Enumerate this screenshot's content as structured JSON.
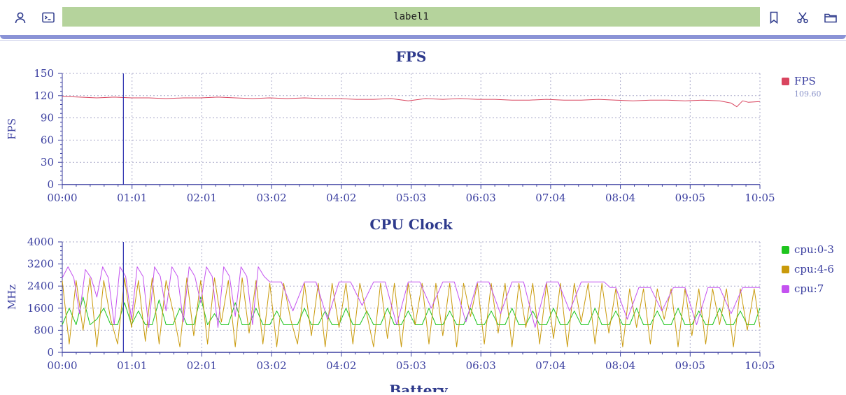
{
  "toolbar": {
    "label": "label1",
    "icons": [
      "user-icon",
      "terminal-icon",
      "bookmark-icon",
      "scissors-icon",
      "folder-icon"
    ]
  },
  "colors": {
    "axis": "#3b3fa0",
    "title": "#2e3a8c",
    "grid": "#a9a9c9",
    "cursor": "#2b2fb0",
    "fps": "#d9455f",
    "cpu03": "#1ec51e",
    "cpu46": "#c99a0b",
    "cpu7": "#c452f0"
  },
  "chart_data": [
    {
      "type": "line",
      "title": "FPS",
      "ylabel": "FPS",
      "xlabel": "",
      "ylim": [
        0,
        150
      ],
      "yticks": [
        "0",
        "30",
        "60",
        "90",
        "120",
        "150"
      ],
      "xticks": [
        "00:00",
        "01:01",
        "02:01",
        "03:02",
        "04:02",
        "05:03",
        "06:03",
        "07:04",
        "08:04",
        "09:05",
        "10:05"
      ],
      "x_seconds_range": [
        0,
        605
      ],
      "cursor_time": "00:53",
      "grid": true,
      "legend_position": "right",
      "series": [
        {
          "name": "FPS",
          "value_label": "109.60",
          "x_seconds": [
            0,
            15,
            30,
            45,
            60,
            75,
            90,
            105,
            120,
            135,
            150,
            165,
            180,
            195,
            210,
            225,
            240,
            255,
            270,
            285,
            300,
            315,
            330,
            345,
            360,
            375,
            390,
            405,
            420,
            435,
            450,
            465,
            480,
            495,
            510,
            525,
            540,
            555,
            570,
            580,
            585,
            590,
            595,
            605
          ],
          "values": [
            119,
            118,
            117,
            118,
            117,
            117,
            116,
            117,
            117,
            118,
            117,
            116,
            117,
            116,
            117,
            116,
            116,
            115,
            115,
            116,
            113,
            116,
            115,
            116,
            115,
            115,
            114,
            114,
            115,
            114,
            114,
            115,
            114,
            113,
            114,
            114,
            113,
            114,
            113,
            110,
            105,
            113,
            111,
            112
          ]
        }
      ]
    },
    {
      "type": "line",
      "title": "CPU Clock",
      "ylabel": "MHz",
      "xlabel": "",
      "ylim": [
        0,
        4000
      ],
      "yticks": [
        "0",
        "800",
        "1600",
        "2400",
        "3200",
        "4000"
      ],
      "xticks": [
        "00:00",
        "01:01",
        "02:01",
        "03:02",
        "04:02",
        "05:03",
        "06:03",
        "07:04",
        "08:04",
        "09:05",
        "10:05"
      ],
      "x_seconds_range": [
        0,
        605
      ],
      "cursor_time": "00:53",
      "grid": true,
      "legend_position": "right",
      "series": [
        {
          "name": "cpu:0-3",
          "x_seconds": [
            0,
            6,
            12,
            18,
            24,
            30,
            36,
            42,
            48,
            54,
            60,
            66,
            72,
            78,
            84,
            90,
            96,
            102,
            108,
            114,
            120,
            126,
            132,
            138,
            144,
            150,
            156,
            162,
            168,
            174,
            180,
            186,
            192,
            198,
            204,
            210,
            216,
            222,
            228,
            234,
            240,
            246,
            252,
            258,
            264,
            270,
            276,
            282,
            288,
            294,
            300,
            306,
            312,
            318,
            324,
            330,
            336,
            342,
            348,
            354,
            360,
            366,
            372,
            378,
            384,
            390,
            396,
            402,
            408,
            414,
            420,
            426,
            432,
            438,
            444,
            450,
            456,
            462,
            468,
            474,
            480,
            486,
            492,
            498,
            504,
            510,
            516,
            522,
            528,
            534,
            540,
            546,
            552,
            558,
            564,
            570,
            576,
            582,
            588,
            594,
            600,
            605
          ],
          "values": [
            1000,
            1600,
            1000,
            2000,
            1000,
            1200,
            1600,
            1000,
            1000,
            1800,
            1000,
            1500,
            1000,
            1000,
            1900,
            1000,
            1000,
            1600,
            1000,
            1000,
            2000,
            1000,
            1400,
            1000,
            1000,
            1800,
            1000,
            1000,
            1600,
            1000,
            1000,
            1500,
            1000,
            1000,
            1000,
            1600,
            1000,
            1000,
            1500,
            1000,
            1000,
            1600,
            1000,
            1000,
            1500,
            1000,
            1000,
            1600,
            1000,
            1000,
            1500,
            1000,
            1000,
            1600,
            1000,
            1000,
            1500,
            1000,
            1000,
            1600,
            1000,
            1000,
            1500,
            1000,
            1000,
            1600,
            1000,
            1000,
            1500,
            1000,
            1000,
            1600,
            1000,
            1000,
            1500,
            1000,
            1000,
            1600,
            1000,
            1000,
            1500,
            1000,
            1000,
            1600,
            1000,
            1000,
            1500,
            1000,
            1000,
            1600,
            1000,
            1000,
            1500,
            1000,
            1000,
            1600,
            1000,
            1000,
            1500,
            1000,
            1000,
            1600
          ]
        },
        {
          "name": "cpu:4-6",
          "x_seconds": [
            0,
            6,
            12,
            18,
            24,
            30,
            36,
            42,
            48,
            54,
            60,
            66,
            72,
            78,
            84,
            90,
            96,
            102,
            108,
            114,
            120,
            126,
            132,
            138,
            144,
            150,
            156,
            162,
            168,
            174,
            180,
            186,
            192,
            198,
            204,
            210,
            216,
            222,
            228,
            234,
            240,
            246,
            252,
            258,
            264,
            270,
            276,
            282,
            288,
            294,
            300,
            306,
            312,
            318,
            324,
            330,
            336,
            342,
            348,
            354,
            360,
            366,
            372,
            378,
            384,
            390,
            396,
            402,
            408,
            414,
            420,
            426,
            432,
            438,
            444,
            450,
            456,
            462,
            468,
            474,
            480,
            486,
            492,
            498,
            504,
            510,
            516,
            522,
            528,
            534,
            540,
            546,
            552,
            558,
            564,
            570,
            576,
            582,
            588,
            594,
            600,
            605
          ],
          "values": [
            2600,
            300,
            2600,
            800,
            2700,
            200,
            2600,
            1200,
            300,
            2700,
            900,
            2600,
            400,
            2700,
            300,
            2600,
            1500,
            200,
            2700,
            600,
            2600,
            300,
            2700,
            1100,
            2600,
            200,
            2700,
            700,
            2600,
            300,
            2500,
            200,
            2500,
            1200,
            300,
            2500,
            600,
            2500,
            200,
            2500,
            900,
            2500,
            300,
            2500,
            1400,
            200,
            2500,
            500,
            2500,
            200,
            2500,
            1000,
            2500,
            300,
            2500,
            600,
            2500,
            200,
            2500,
            1300,
            2500,
            300,
            2500,
            700,
            2500,
            200,
            2500,
            900,
            2500,
            300,
            2500,
            500,
            2500,
            200,
            2500,
            1100,
            2500,
            300,
            2500,
            700,
            2300,
            200,
            2300,
            900,
            2300,
            300,
            2300,
            1200,
            2300,
            200,
            2300,
            600,
            2300,
            300,
            2300,
            1000,
            2300,
            200,
            2300,
            800,
            2300,
            900
          ]
        },
        {
          "name": "cpu:7",
          "x_seconds": [
            0,
            5,
            10,
            15,
            20,
            25,
            30,
            35,
            40,
            45,
            50,
            55,
            60,
            65,
            70,
            75,
            80,
            85,
            90,
            95,
            100,
            105,
            110,
            115,
            120,
            125,
            130,
            135,
            140,
            145,
            150,
            155,
            160,
            165,
            170,
            175,
            180,
            190,
            200,
            210,
            220,
            230,
            240,
            250,
            260,
            270,
            280,
            290,
            300,
            310,
            320,
            330,
            340,
            350,
            360,
            370,
            380,
            390,
            400,
            410,
            420,
            430,
            440,
            450,
            460,
            470,
            475,
            480,
            490,
            500,
            510,
            520,
            530,
            540,
            550,
            560,
            570,
            580,
            590,
            600,
            605
          ],
          "values": [
            2700,
            3100,
            2700,
            1400,
            3000,
            2700,
            2000,
            3100,
            2700,
            1000,
            3100,
            2750,
            1200,
            3100,
            2750,
            900,
            3100,
            2750,
            1500,
            3100,
            2750,
            1100,
            3100,
            2750,
            1800,
            3100,
            2750,
            900,
            3100,
            2750,
            1300,
            3100,
            2750,
            1000,
            3100,
            2750,
            2550,
            2550,
            1500,
            2550,
            2550,
            1200,
            2550,
            2550,
            1700,
            2550,
            2550,
            1000,
            2550,
            2550,
            1600,
            2550,
            2550,
            1100,
            2550,
            2550,
            1400,
            2550,
            2550,
            900,
            2550,
            2550,
            1500,
            2550,
            2550,
            2550,
            2350,
            2350,
            1200,
            2350,
            2350,
            1500,
            2350,
            2350,
            1000,
            2350,
            2350,
            1400,
            2350,
            2350,
            2350
          ]
        }
      ]
    },
    {
      "type": "line",
      "title": "Battery"
    }
  ]
}
